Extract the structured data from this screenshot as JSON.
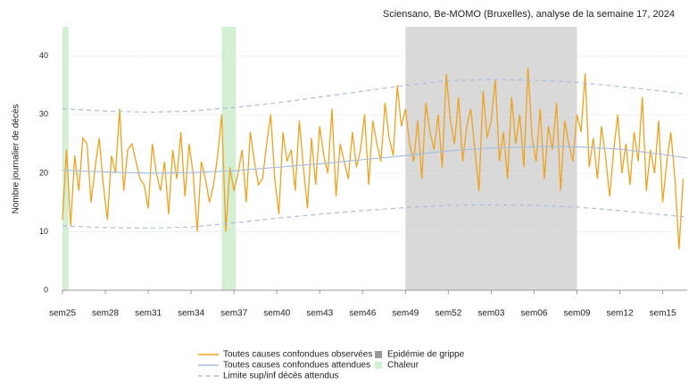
{
  "chart_data": {
    "type": "line",
    "title": "Sciensano, Be-MOMO (Bruxelles), analyse de la semaine 17, 2024",
    "y_label": "Nombre journalier de décès",
    "xlim": [
      0,
      306
    ],
    "ylim": [
      0,
      45
    ],
    "yticks": [
      0,
      10,
      20,
      30,
      40
    ],
    "grid": true,
    "xticks": [
      {
        "value": 0,
        "label": "sem25"
      },
      {
        "value": 21,
        "label": "sem28"
      },
      {
        "value": 42,
        "label": "sem31"
      },
      {
        "value": 63,
        "label": "sem34"
      },
      {
        "value": 84,
        "label": "sem37"
      },
      {
        "value": 105,
        "label": "sem40"
      },
      {
        "value": 126,
        "label": "sem43"
      },
      {
        "value": 147,
        "label": "sem46"
      },
      {
        "value": 168,
        "label": "sem49"
      },
      {
        "value": 189,
        "label": "sem52"
      },
      {
        "value": 210,
        "label": "sem03"
      },
      {
        "value": 231,
        "label": "sem06"
      },
      {
        "value": 252,
        "label": "sem09"
      },
      {
        "value": 273,
        "label": "sem12"
      },
      {
        "value": 294,
        "label": "sem15"
      }
    ],
    "regions": [
      {
        "name": "Epidémie de grippe",
        "color": "#d9d9d9",
        "spans": [
          [
            168,
            252
          ]
        ]
      },
      {
        "name": "Chaleur",
        "color": "#d4efd4",
        "spans": [
          [
            0,
            3
          ],
          [
            78,
            85
          ]
        ]
      }
    ],
    "series": [
      {
        "name": "Toutes causes confondues observées",
        "color": "#eea21f",
        "x": [
          0,
          2,
          4,
          6,
          8,
          10,
          12,
          14,
          16,
          18,
          20,
          22,
          24,
          26,
          28,
          30,
          32,
          34,
          36,
          38,
          40,
          42,
          44,
          46,
          48,
          50,
          52,
          54,
          56,
          58,
          60,
          62,
          64,
          66,
          68,
          70,
          72,
          74,
          76,
          78,
          80,
          82,
          84,
          86,
          88,
          90,
          92,
          94,
          96,
          98,
          100,
          102,
          104,
          106,
          108,
          110,
          112,
          114,
          116,
          118,
          120,
          122,
          124,
          126,
          128,
          130,
          132,
          134,
          136,
          138,
          140,
          142,
          144,
          146,
          148,
          150,
          152,
          154,
          156,
          158,
          160,
          162,
          164,
          166,
          168,
          170,
          172,
          174,
          176,
          178,
          180,
          182,
          184,
          186,
          188,
          190,
          192,
          194,
          196,
          198,
          200,
          202,
          204,
          206,
          208,
          210,
          212,
          214,
          216,
          218,
          220,
          222,
          224,
          226,
          228,
          230,
          232,
          234,
          236,
          238,
          240,
          242,
          244,
          246,
          248,
          250,
          252,
          254,
          256,
          258,
          260,
          262,
          264,
          266,
          268,
          270,
          272,
          274,
          276,
          278,
          280,
          282,
          284,
          286,
          288,
          290,
          292,
          294,
          296,
          298,
          300,
          302,
          304
        ],
        "values": [
          12,
          24,
          11,
          23,
          17,
          26,
          25,
          15,
          21,
          26,
          18,
          12,
          23,
          20,
          31,
          17,
          24,
          25,
          22,
          19,
          18,
          14,
          25,
          20,
          17,
          22,
          13,
          24,
          19,
          27,
          16,
          25,
          20,
          10,
          22,
          19,
          15,
          18,
          23,
          30,
          10,
          21,
          17,
          20,
          24,
          15,
          27,
          22,
          18,
          19,
          25,
          30,
          19,
          13,
          27,
          22,
          24,
          17,
          29,
          21,
          14,
          26,
          18,
          28,
          23,
          20,
          31,
          16,
          25,
          22,
          19,
          27,
          21,
          24,
          30,
          18,
          29,
          25,
          22,
          32,
          26,
          23,
          35,
          28,
          31,
          25,
          22,
          29,
          19,
          32,
          27,
          24,
          30,
          21,
          37,
          29,
          25,
          33,
          22,
          28,
          31,
          24,
          17,
          34,
          26,
          29,
          36,
          22,
          27,
          19,
          33,
          25,
          30,
          21,
          38,
          26,
          22,
          31,
          19,
          28,
          24,
          32,
          17,
          29,
          25,
          22,
          30,
          27,
          37,
          21,
          26,
          19,
          28,
          23,
          16,
          24,
          30,
          20,
          25,
          18,
          27,
          22,
          33,
          17,
          24,
          20,
          29,
          15,
          22,
          27,
          19,
          7,
          19
        ]
      },
      {
        "name": "Toutes causes confondues attendues",
        "color": "#a9bfdc",
        "x": [
          0,
          21,
          42,
          63,
          84,
          105,
          126,
          147,
          168,
          189,
          210,
          231,
          252,
          273,
          294,
          306
        ],
        "values": [
          20.5,
          20.2,
          20,
          20.1,
          20.4,
          21,
          21.6,
          22.3,
          23,
          23.8,
          24.3,
          24.5,
          24.5,
          24.1,
          23.2,
          22.6
        ]
      },
      {
        "name": "Limite sup/inf décès attendus",
        "color": "#a9bfdc",
        "dashed": true,
        "x": [
          0,
          21,
          42,
          63,
          84,
          105,
          126,
          147,
          168,
          189,
          210,
          231,
          252,
          273,
          294,
          306
        ],
        "upper": [
          31,
          30.6,
          30.4,
          30.6,
          31.2,
          32,
          33,
          34,
          35,
          35.8,
          36,
          35.9,
          35.5,
          34.8,
          34,
          33.5
        ],
        "lower": [
          11,
          10.7,
          10.6,
          10.8,
          11.5,
          12.3,
          13,
          13.6,
          14.1,
          14.5,
          14.6,
          14.5,
          14.2,
          13.6,
          12.9,
          12.5
        ]
      }
    ]
  }
}
